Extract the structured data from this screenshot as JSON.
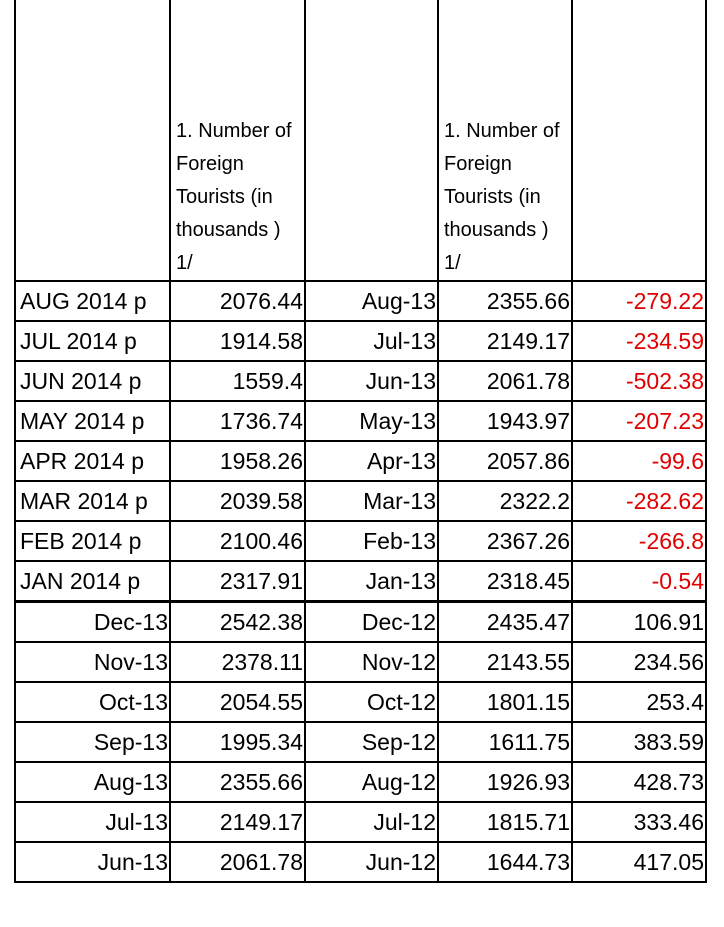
{
  "headers": [
    "",
    "1. Number of Foreign Tourists (in thousands ) 1/",
    "",
    "1. Number of Foreign Tourists (in thousands ) 1/",
    ""
  ],
  "rows": [
    [
      "AUG 2014 p",
      "2076.44",
      "Aug-13",
      "2355.66",
      "-279.22"
    ],
    [
      "JUL 2014 p",
      "1914.58",
      "Jul-13",
      "2149.17",
      "-234.59"
    ],
    [
      "JUN 2014 p",
      "1559.4",
      "Jun-13",
      "2061.78",
      "-502.38"
    ],
    [
      "MAY 2014 p",
      "1736.74",
      "May-13",
      "1943.97",
      "-207.23"
    ],
    [
      "APR 2014 p",
      "1958.26",
      "Apr-13",
      "2057.86",
      "-99.6"
    ],
    [
      "MAR 2014 p",
      "2039.58",
      "Mar-13",
      "2322.2",
      "-282.62"
    ],
    [
      "FEB 2014 p",
      "2100.46",
      "Feb-13",
      "2367.26",
      "-266.8"
    ],
    [
      "JAN 2014 p",
      "2317.91",
      "Jan-13",
      "2318.45",
      "-0.54"
    ],
    [
      "Dec-13",
      "2542.38",
      "Dec-12",
      "2435.47",
      "106.91"
    ],
    [
      "Nov-13",
      "2378.11",
      "Nov-12",
      "2143.55",
      "234.56"
    ],
    [
      "Oct-13",
      "2054.55",
      "Oct-12",
      "1801.15",
      "253.4"
    ],
    [
      "Sep-13",
      "1995.34",
      "Sep-12",
      "1611.75",
      "383.59"
    ],
    [
      "Aug-13",
      "2355.66",
      "Aug-12",
      "1926.93",
      "428.73"
    ],
    [
      "Jul-13",
      "2149.17",
      "Jul-12",
      "1815.71",
      "333.46"
    ],
    [
      "Jun-13",
      "2061.78",
      "Jun-12",
      "1644.73",
      "417.05"
    ]
  ],
  "colors": {
    "negative": "#e00000"
  }
}
